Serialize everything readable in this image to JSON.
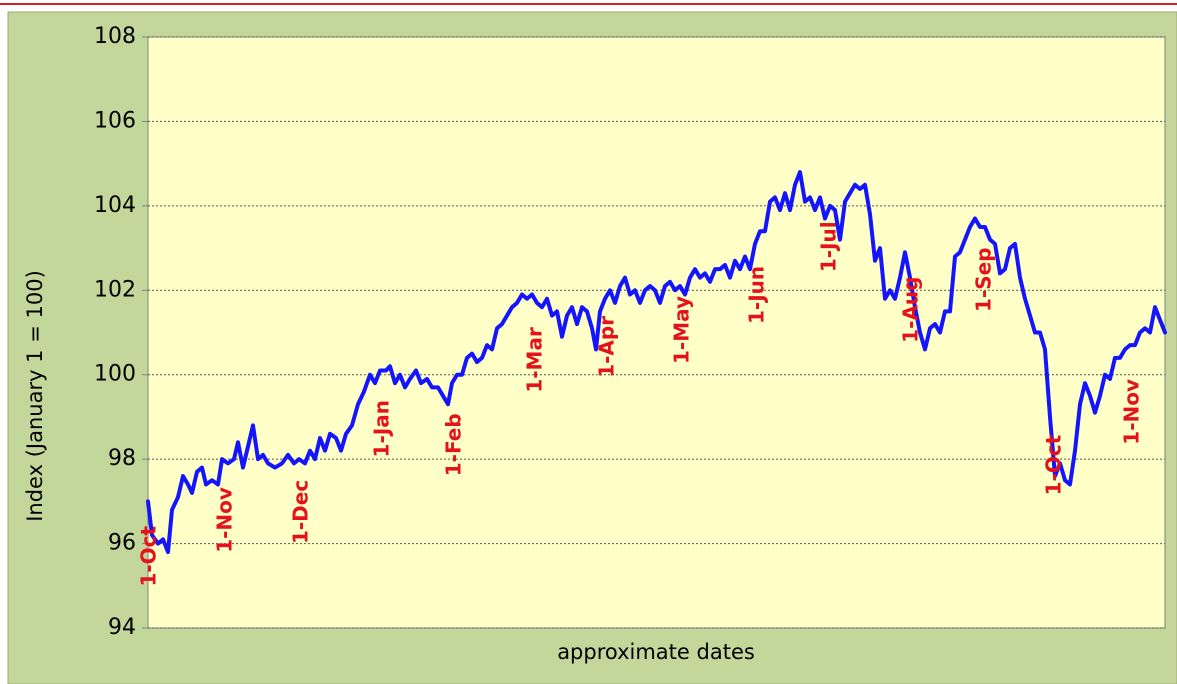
{
  "chart_data": {
    "type": "line",
    "x_label": "approximate dates",
    "y_label": "Index (January 1 = 100)",
    "color": "#1414ff",
    "grid": true,
    "xlim": [
      0,
      1017
    ],
    "ylim": [
      94,
      108
    ],
    "yticks": [
      94,
      96,
      98,
      100,
      102,
      104,
      106,
      108
    ],
    "annotations": [
      {
        "label": "1-Oct",
        "x": 2,
        "y": 95.7
      },
      {
        "label": "1-Nov",
        "x": 78,
        "y": 96.56
      },
      {
        "label": "1-Dec",
        "x": 154,
        "y": 96.75
      },
      {
        "label": "1-Jan",
        "x": 235,
        "y": 98.72
      },
      {
        "label": "1-Feb",
        "x": 307,
        "y": 98.34
      },
      {
        "label": "1-Mar",
        "x": 388,
        "y": 100.35
      },
      {
        "label": "1-Apr",
        "x": 460,
        "y": 100.66
      },
      {
        "label": "1-May",
        "x": 535,
        "y": 101.06
      },
      {
        "label": "1-Jun",
        "x": 610,
        "y": 101.89
      },
      {
        "label": "1-Jul",
        "x": 682,
        "y": 103.03
      },
      {
        "label": "1-Aug",
        "x": 764,
        "y": 101.54
      },
      {
        "label": "1-Sep",
        "x": 837,
        "y": 102.25
      },
      {
        "label": "1-Oct",
        "x": 907,
        "y": 97.86
      },
      {
        "label": "1-Nov",
        "x": 985,
        "y": 99.12
      }
    ],
    "x": [
      0,
      4,
      10,
      15,
      20,
      24,
      30,
      35,
      40,
      44,
      49,
      54,
      58,
      64,
      70,
      74,
      80,
      86,
      90,
      95,
      100,
      105,
      110,
      115,
      120,
      127,
      134,
      140,
      146,
      151,
      157,
      162,
      167,
      172,
      177,
      182,
      188,
      193,
      198,
      204,
      210,
      216,
      222,
      227,
      232,
      238,
      242,
      247,
      252,
      257,
      262,
      268,
      273,
      279,
      284,
      290,
      295,
      300,
      304,
      309,
      314,
      319,
      324,
      329,
      334,
      339,
      344,
      349,
      354,
      359,
      364,
      369,
      374,
      379,
      384,
      389,
      394,
      399,
      404,
      409,
      414,
      419,
      424,
      429,
      434,
      439,
      444,
      448,
      452,
      457,
      462,
      467,
      472,
      477,
      482,
      487,
      492,
      497,
      502,
      507,
      512,
      517,
      522,
      527,
      532,
      537,
      542,
      547,
      552,
      557,
      562,
      567,
      572,
      577,
      582,
      587,
      592,
      597,
      602,
      607,
      612,
      617,
      622,
      627,
      632,
      637,
      642,
      647,
      652,
      657,
      662,
      667,
      672,
      677,
      682,
      687,
      692,
      697,
      702,
      707,
      712,
      717,
      722,
      727,
      732,
      737,
      742,
      747,
      752,
      757,
      762,
      767,
      772,
      777,
      782,
      787,
      792,
      797,
      802,
      807,
      812,
      817,
      822,
      827,
      832,
      837,
      842,
      847,
      852,
      857,
      862,
      867,
      872,
      877,
      882,
      887,
      892,
      897,
      902,
      907,
      912,
      917,
      922,
      927,
      932,
      937,
      942,
      947,
      952,
      957,
      962,
      967,
      972,
      977,
      982,
      987,
      992,
      997,
      1002,
      1007,
      1012,
      1017
    ],
    "values": [
      97.0,
      96.2,
      96.0,
      96.1,
      95.8,
      96.8,
      97.1,
      97.6,
      97.4,
      97.2,
      97.7,
      97.8,
      97.4,
      97.5,
      97.4,
      98.0,
      97.9,
      98.0,
      98.4,
      97.8,
      98.3,
      98.8,
      98.0,
      98.1,
      97.9,
      97.8,
      97.9,
      98.1,
      97.9,
      98.0,
      97.9,
      98.2,
      98.0,
      98.5,
      98.2,
      98.6,
      98.5,
      98.2,
      98.6,
      98.8,
      99.3,
      99.6,
      100.0,
      99.8,
      100.1,
      100.1,
      100.2,
      99.8,
      100.0,
      99.7,
      99.9,
      100.1,
      99.8,
      99.9,
      99.7,
      99.7,
      99.5,
      99.3,
      99.8,
      100.0,
      100.0,
      100.4,
      100.5,
      100.3,
      100.4,
      100.7,
      100.6,
      101.1,
      101.2,
      101.4,
      101.6,
      101.7,
      101.9,
      101.8,
      101.9,
      101.7,
      101.6,
      101.8,
      101.4,
      101.5,
      100.9,
      101.4,
      101.6,
      101.2,
      101.6,
      101.5,
      101.1,
      100.6,
      101.5,
      101.8,
      102.0,
      101.7,
      102.1,
      102.3,
      101.9,
      102.0,
      101.7,
      102.0,
      102.1,
      102.0,
      101.7,
      102.1,
      102.2,
      102.0,
      102.1,
      101.9,
      102.3,
      102.5,
      102.3,
      102.4,
      102.2,
      102.5,
      102.5,
      102.6,
      102.3,
      102.7,
      102.5,
      102.8,
      102.5,
      103.1,
      103.4,
      103.4,
      104.1,
      104.2,
      103.9,
      104.3,
      103.9,
      104.5,
      104.8,
      104.1,
      104.2,
      103.9,
      104.2,
      103.7,
      104.0,
      103.9,
      103.2,
      104.1,
      104.3,
      104.5,
      104.4,
      104.5,
      103.8,
      102.7,
      103.0,
      101.8,
      102.0,
      101.8,
      102.3,
      102.9,
      102.3,
      101.6,
      101.0,
      100.6,
      101.1,
      101.2,
      101.0,
      101.5,
      101.5,
      102.8,
      102.9,
      103.2,
      103.5,
      103.7,
      103.5,
      103.5,
      103.2,
      103.1,
      102.4,
      102.5,
      103.0,
      103.1,
      102.3,
      101.8,
      101.4,
      101.0,
      101.0,
      100.6,
      99.0,
      97.6,
      97.9,
      97.5,
      97.4,
      98.2,
      99.3,
      99.8,
      99.5,
      99.1,
      99.5,
      100.0,
      99.9,
      100.4,
      100.4,
      100.6,
      100.7,
      100.7,
      101.0,
      101.1,
      101.0,
      101.6,
      101.3,
      101.0
    ]
  }
}
